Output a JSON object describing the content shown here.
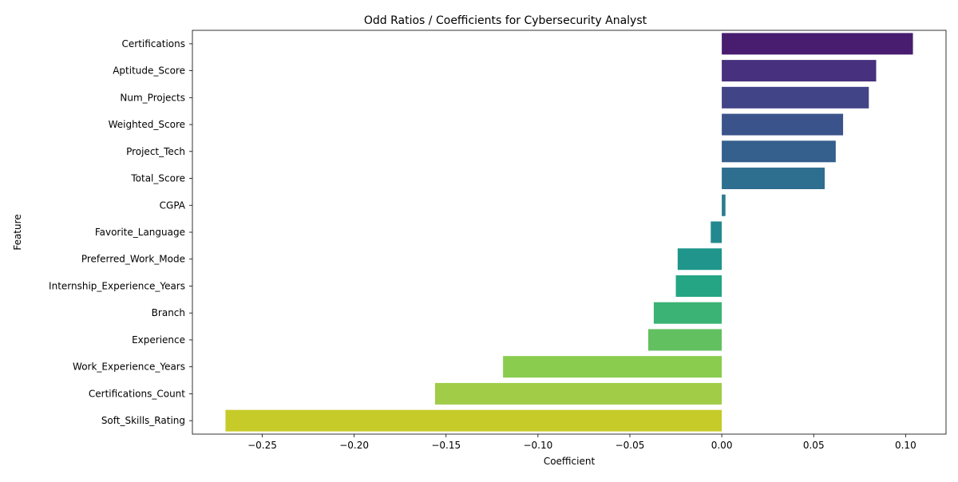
{
  "chart_data": {
    "type": "bar",
    "orientation": "horizontal",
    "title": "Odd Ratios / Coefficients for Cybersecurity Analyst",
    "xlabel": "Coefficient",
    "ylabel": "Feature",
    "xlim": [
      -0.288,
      0.122
    ],
    "x_ticks": [
      -0.25,
      -0.2,
      -0.15,
      -0.1,
      -0.05,
      0.0,
      0.05,
      0.1
    ],
    "x_tick_labels": [
      "−0.25",
      "−0.20",
      "−0.15",
      "−0.10",
      "−0.05",
      "0.00",
      "0.05",
      "0.10"
    ],
    "grid": false,
    "legend": "none",
    "categories": [
      "Certifications",
      "Aptitude_Score",
      "Num_Projects",
      "Weighted_Score",
      "Project_Tech",
      "Total_Score",
      "CGPA",
      "Favorite_Language",
      "Preferred_Work_Mode",
      "Internship_Experience_Years",
      "Branch",
      "Experience",
      "Work_Experience_Years",
      "Certifications_Count",
      "Soft_Skills_Rating"
    ],
    "values": [
      0.104,
      0.084,
      0.08,
      0.066,
      0.062,
      0.056,
      0.002,
      -0.006,
      -0.024,
      -0.025,
      -0.037,
      -0.04,
      -0.119,
      -0.156,
      -0.27
    ],
    "colors": [
      "#481d6f",
      "#47307e",
      "#414487",
      "#3b538b",
      "#355f8d",
      "#2e6e8e",
      "#2a7b8e",
      "#23898e",
      "#1f958b",
      "#25a584",
      "#3bb375",
      "#63c061",
      "#8acc4e",
      "#a0cc48",
      "#c6cb29"
    ]
  }
}
